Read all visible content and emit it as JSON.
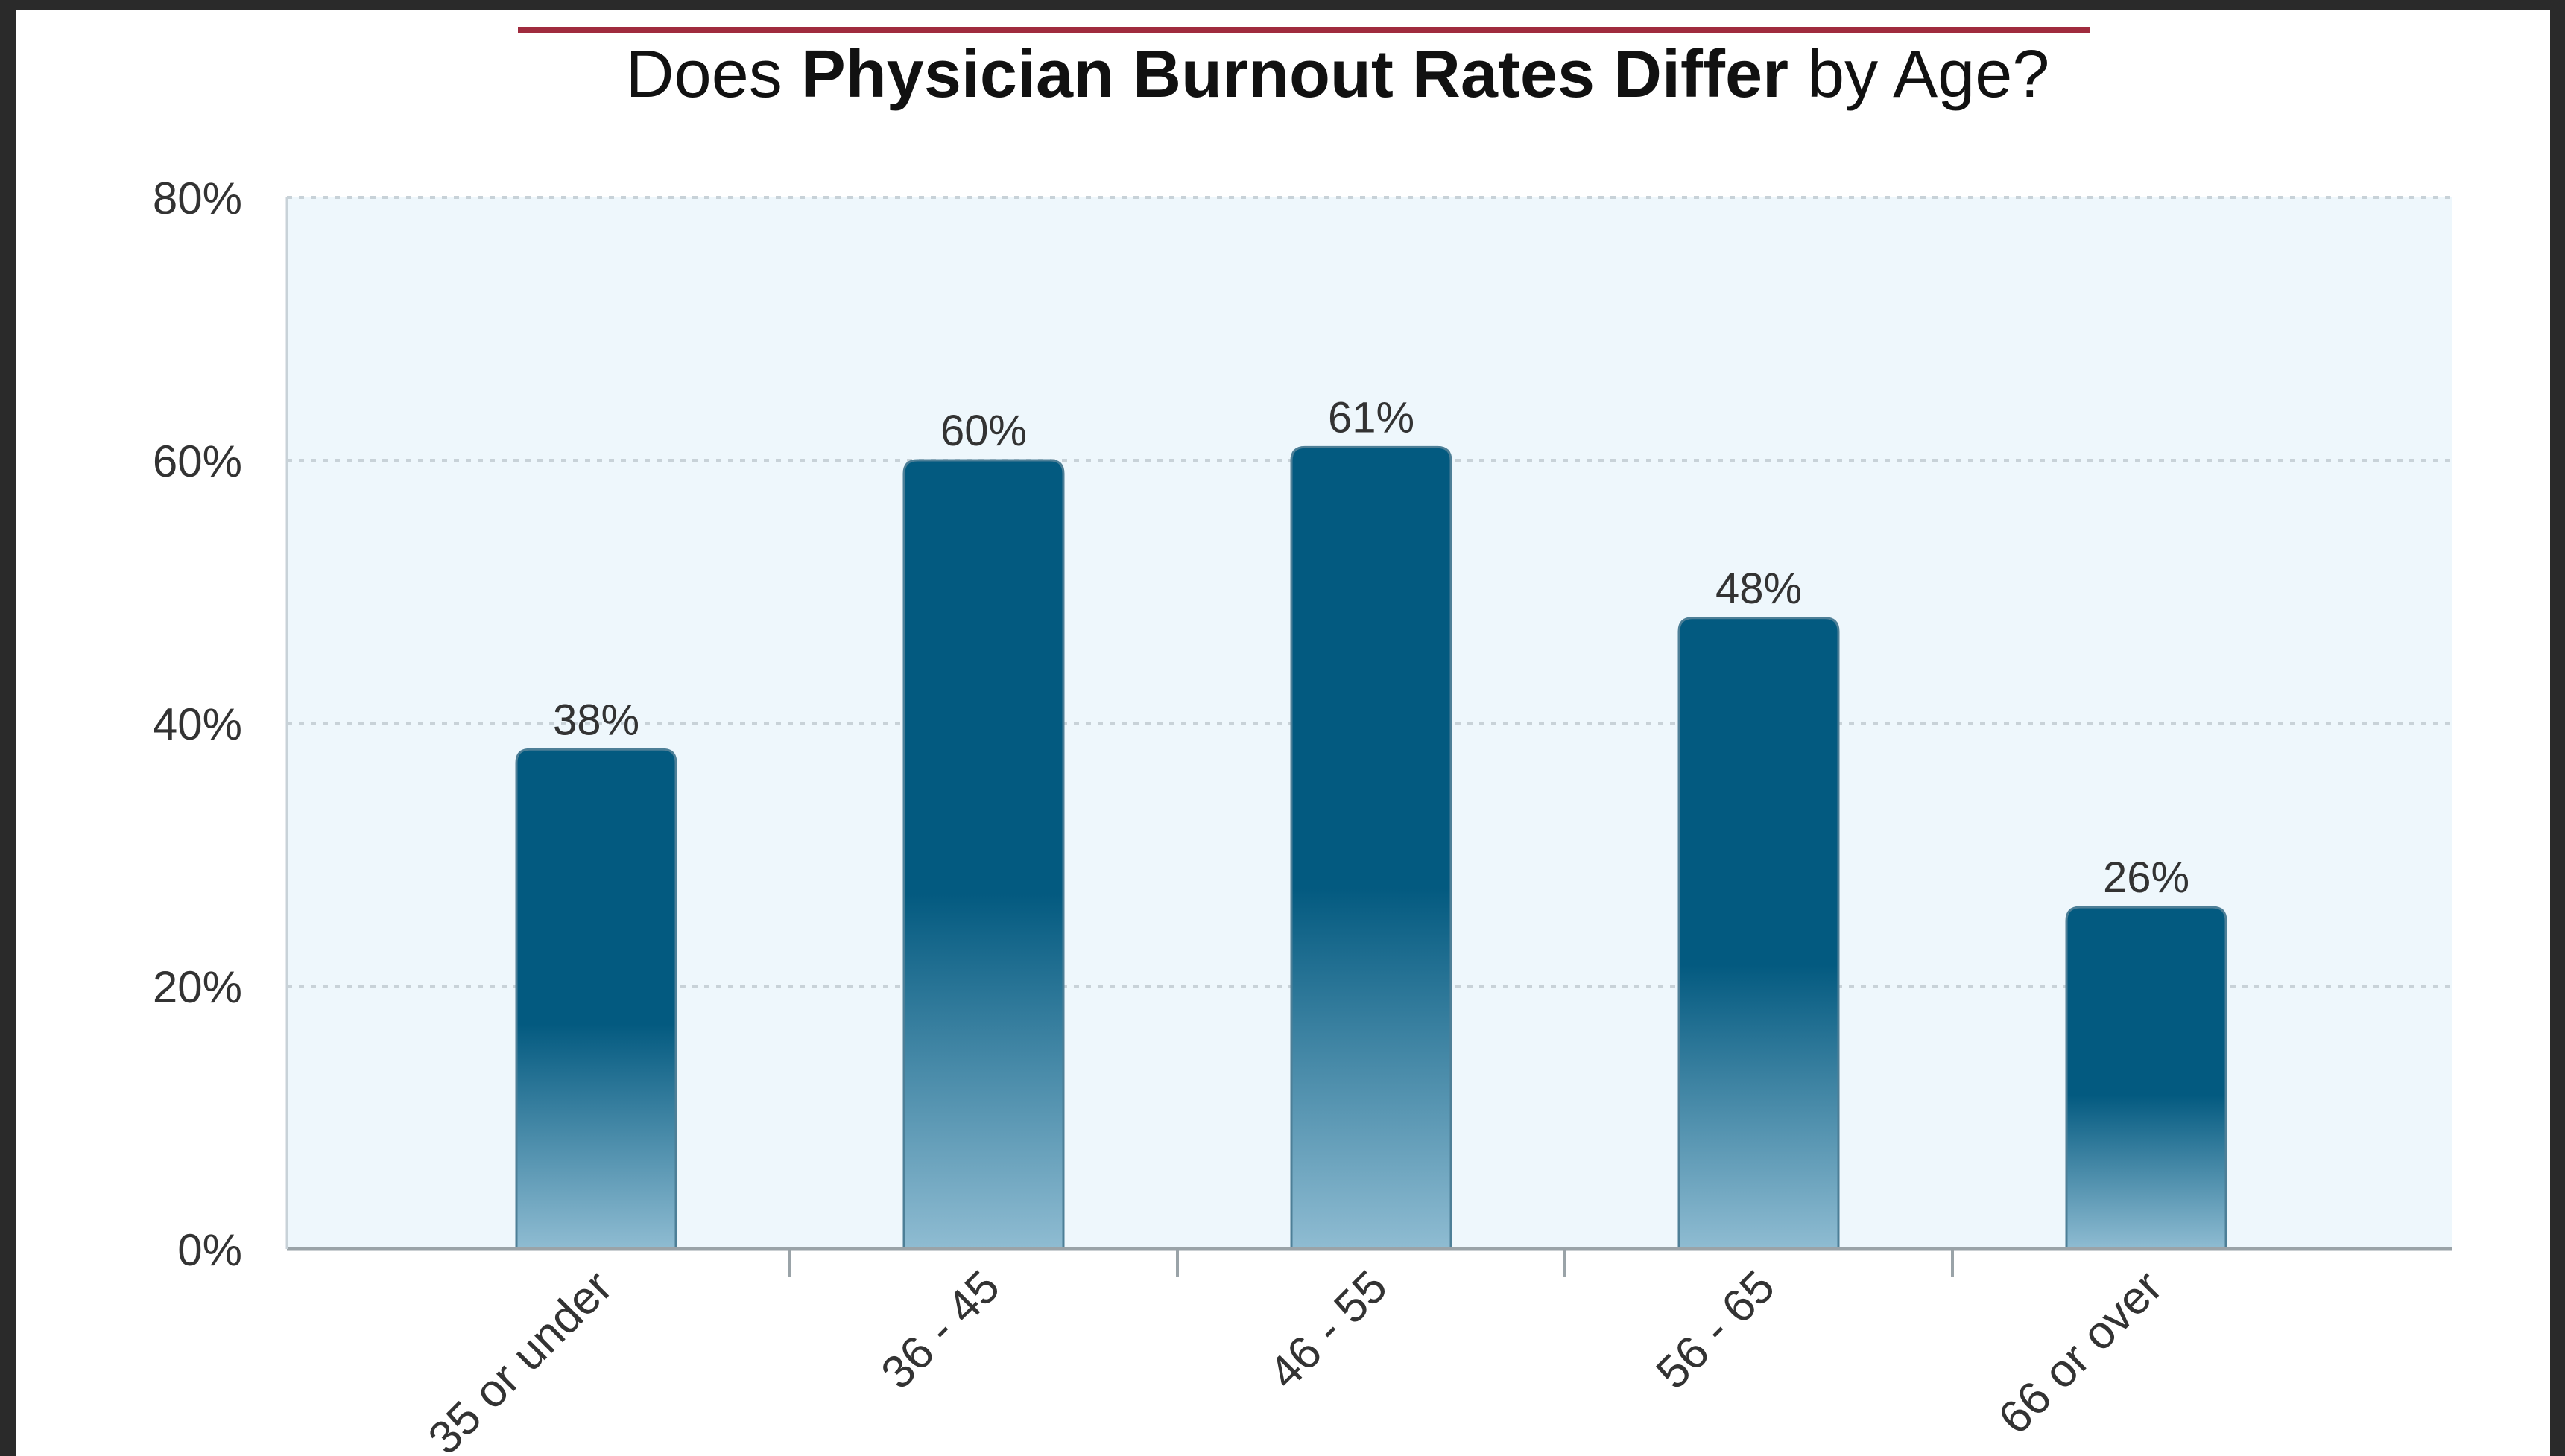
{
  "chart_data": {
    "type": "bar",
    "title_parts": [
      "Does",
      " Physician Burnout Rates Differ",
      " by Age?"
    ],
    "categories": [
      "35 or under",
      "36 - 45",
      "46 - 55",
      "56 - 65",
      "66 or over"
    ],
    "values": [
      38,
      60,
      61,
      48,
      26
    ],
    "value_labels": [
      "38%",
      "60%",
      "61%",
      "48%",
      "26%"
    ],
    "y_ticks": [
      "0%",
      "20%",
      "40%",
      "60%",
      "80%"
    ],
    "ylim": [
      0,
      80
    ],
    "grid": true,
    "legend": "none"
  },
  "colors": {
    "bar_top": "#035a80",
    "bar_bottom": "#8fbcd2",
    "plot_bg": "#eef7fc",
    "title_rule": "#a02b3e",
    "grid": "#c8d2d8",
    "text": "#333333"
  }
}
